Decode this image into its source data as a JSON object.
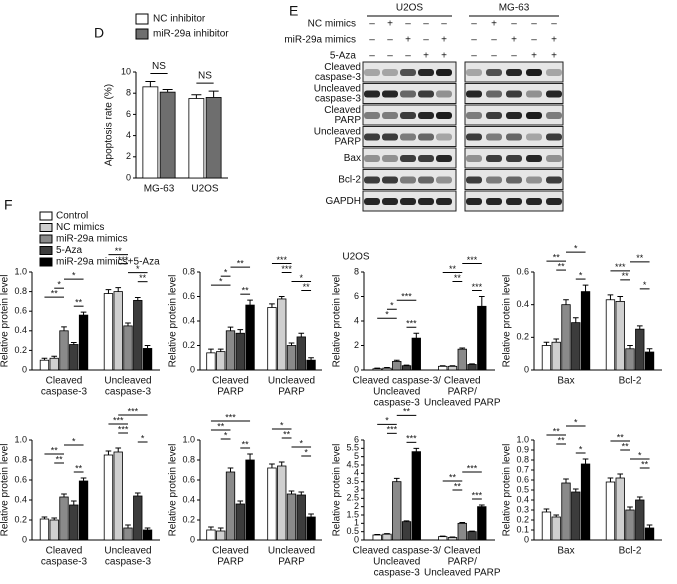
{
  "panel_d": {
    "label": "D"
  },
  "blot": {
    "label": "E",
    "cell_lines": [
      "U2OS",
      "MG-63"
    ],
    "conditions": [
      {
        "name": "NC mimics",
        "signs": [
          "–",
          "+",
          "–",
          "–",
          "–"
        ]
      },
      {
        "name": "miR-29a mimics",
        "signs": [
          "–",
          "–",
          "+",
          "–",
          "+"
        ]
      },
      {
        "name": "5-Aza",
        "signs": [
          "–",
          "–",
          "–",
          "+",
          "+"
        ]
      }
    ],
    "proteins": [
      [
        "Cleaved",
        "caspase-3"
      ],
      [
        "Uncleaved",
        "caspase-3"
      ],
      [
        "Cleaved",
        "PARP"
      ],
      [
        "Uncleaved",
        "PARP"
      ],
      [
        "Bax"
      ],
      [
        "Bcl-2"
      ],
      [
        "GAPDH"
      ]
    ]
  },
  "panel_f": {
    "label": "F",
    "title": "U2OS",
    "legend": [
      {
        "name": "Control",
        "color": "#ffffff"
      },
      {
        "name": "NC mimics",
        "color": "#cfcfcf"
      },
      {
        "name": "miR-29a mimics",
        "color": "#8a8a8a"
      },
      {
        "name": "5-Aza",
        "color": "#3c3c3c"
      },
      {
        "name": "miR-29a mimics+5-Aza",
        "color": "#000000"
      }
    ]
  },
  "chart_data": [
    {
      "type": "bar",
      "ylabel": "Apoptosis rate (%)",
      "categories": [
        "MG-63",
        "U2OS"
      ],
      "series": [
        {
          "name": "NC inhibitor",
          "color": "#ffffff",
          "values": [
            8.6,
            7.5
          ],
          "errors": [
            0.5,
            0.35
          ]
        },
        {
          "name": "miR-29a inhibitor",
          "color": "#6e6e6e",
          "values": [
            8.1,
            7.6
          ],
          "errors": [
            0.25,
            0.6
          ]
        }
      ],
      "annotations": [
        "NS",
        "NS"
      ],
      "ylim": [
        0,
        10
      ],
      "yticks": [
        0,
        2,
        4,
        6,
        8,
        10
      ]
    },
    {
      "type": "bar",
      "ylabel": "Relative protein level",
      "categories": [
        [
          "Cleaved",
          "caspase-3"
        ],
        [
          "Uncleaved",
          "caspase-3"
        ]
      ],
      "series": [
        {
          "values": [
            0.1,
            0.78
          ],
          "errors": [
            0.02,
            0.04
          ]
        },
        {
          "values": [
            0.12,
            0.8
          ],
          "errors": [
            0.02,
            0.04
          ]
        },
        {
          "values": [
            0.4,
            0.45
          ],
          "errors": [
            0.04,
            0.03
          ]
        },
        {
          "values": [
            0.26,
            0.71
          ],
          "errors": [
            0.02,
            0.03
          ]
        },
        {
          "values": [
            0.56,
            0.22
          ],
          "errors": [
            0.03,
            0.03
          ]
        }
      ],
      "ylim": [
        0,
        1
      ],
      "yticks": [
        0,
        0.2,
        0.4,
        0.6,
        0.8,
        {
          "value": 1,
          "label": "1.0"
        }
      ],
      "brackets": [
        [
          0,
          3,
          4,
          "**"
        ],
        [
          0,
          0,
          2,
          "**"
        ],
        [
          0,
          1,
          2,
          "*"
        ],
        [
          0,
          2,
          4,
          "*"
        ],
        [
          1,
          3,
          4,
          "**"
        ],
        [
          1,
          2,
          4,
          "*"
        ],
        [
          1,
          1,
          2,
          "***"
        ],
        [
          1,
          0,
          2,
          "**"
        ]
      ]
    },
    {
      "type": "bar",
      "ylabel": "Relative protein level",
      "categories": [
        [
          "Cleaved",
          "PARP"
        ],
        [
          "Uncleaved",
          "PARP"
        ]
      ],
      "series": [
        {
          "values": [
            0.14,
            0.51
          ],
          "errors": [
            0.03,
            0.03
          ]
        },
        {
          "values": [
            0.15,
            0.58
          ],
          "errors": [
            0.02,
            0.02
          ]
        },
        {
          "values": [
            0.32,
            0.2
          ],
          "errors": [
            0.03,
            0.02
          ]
        },
        {
          "values": [
            0.3,
            0.27
          ],
          "errors": [
            0.03,
            0.03
          ]
        },
        {
          "values": [
            0.53,
            0.08
          ],
          "errors": [
            0.04,
            0.02
          ]
        }
      ],
      "ylim": [
        0,
        0.8
      ],
      "yticks": [
        0,
        0.2,
        0.4,
        0.6,
        0.8
      ],
      "brackets": [
        [
          0,
          3,
          4,
          "**"
        ],
        [
          0,
          0,
          2,
          "*"
        ],
        [
          0,
          1,
          2,
          "*"
        ],
        [
          0,
          2,
          4,
          "**"
        ],
        [
          1,
          3,
          4,
          "**"
        ],
        [
          1,
          2,
          4,
          "*"
        ],
        [
          1,
          1,
          2,
          "***"
        ],
        [
          1,
          0,
          2,
          "***"
        ]
      ]
    },
    {
      "type": "bar",
      "ylabel": "Relative protein level",
      "categories": [
        [
          "Cleaved caspase-3/",
          "Uncleaved",
          "caspase-3"
        ],
        [
          "Cleaved",
          "PARP/",
          "Uncleaved PARP"
        ]
      ],
      "series": [
        {
          "values": [
            0.1,
            0.3
          ],
          "errors": [
            0.05,
            0.05
          ]
        },
        {
          "values": [
            0.15,
            0.3
          ],
          "errors": [
            0.05,
            0.05
          ]
        },
        {
          "values": [
            0.7,
            1.7
          ],
          "errors": [
            0.1,
            0.1
          ]
        },
        {
          "values": [
            0.35,
            0.45
          ],
          "errors": [
            0.05,
            0.05
          ]
        },
        {
          "values": [
            2.6,
            5.2
          ],
          "errors": [
            0.4,
            0.8
          ]
        }
      ],
      "ylim": [
        0,
        8
      ],
      "yticks": [
        0,
        2,
        4,
        6,
        8
      ],
      "brackets": [
        [
          0,
          3,
          4,
          "***"
        ],
        [
          0,
          0,
          2,
          "*"
        ],
        [
          0,
          1,
          2,
          "*"
        ],
        [
          0,
          2,
          4,
          "***"
        ],
        [
          1,
          3,
          4,
          "***"
        ],
        [
          1,
          1,
          2,
          "**"
        ],
        [
          1,
          0,
          2,
          "**"
        ],
        [
          1,
          2,
          4,
          "***"
        ]
      ]
    },
    {
      "type": "bar",
      "ylabel": "Relative protein level",
      "categories": [
        "Bax",
        "Bcl-2"
      ],
      "series": [
        {
          "values": [
            0.15,
            0.43
          ],
          "errors": [
            0.02,
            0.03
          ]
        },
        {
          "values": [
            0.17,
            0.42
          ],
          "errors": [
            0.02,
            0.03
          ]
        },
        {
          "values": [
            0.4,
            0.13
          ],
          "errors": [
            0.03,
            0.02
          ]
        },
        {
          "values": [
            0.29,
            0.25
          ],
          "errors": [
            0.03,
            0.02
          ]
        },
        {
          "values": [
            0.48,
            0.11
          ],
          "errors": [
            0.04,
            0.02
          ]
        }
      ],
      "ylim": [
        0,
        0.6
      ],
      "yticks": [
        0,
        0.2,
        0.4,
        0.6
      ],
      "brackets": [
        [
          0,
          3,
          4,
          "*"
        ],
        [
          0,
          1,
          2,
          "**"
        ],
        [
          0,
          0,
          2,
          "**"
        ],
        [
          0,
          2,
          4,
          "*"
        ],
        [
          1,
          3,
          4,
          "*"
        ],
        [
          1,
          1,
          2,
          "**"
        ],
        [
          1,
          0,
          2,
          "***"
        ],
        [
          1,
          2,
          4,
          "**"
        ]
      ]
    },
    {
      "type": "bar",
      "ylabel": "Relative protein level",
      "categories": [
        [
          "Cleaved",
          "caspase-3"
        ],
        [
          "Uncleaved",
          "caspase-3"
        ]
      ],
      "series": [
        {
          "values": [
            0.21,
            0.85
          ],
          "errors": [
            0.02,
            0.04
          ]
        },
        {
          "values": [
            0.2,
            0.88
          ],
          "errors": [
            0.02,
            0.04
          ]
        },
        {
          "values": [
            0.43,
            0.12
          ],
          "errors": [
            0.03,
            0.03
          ]
        },
        {
          "values": [
            0.35,
            0.44
          ],
          "errors": [
            0.04,
            0.03
          ]
        },
        {
          "values": [
            0.59,
            0.1
          ],
          "errors": [
            0.03,
            0.02
          ]
        }
      ],
      "ylim": [
        0,
        1
      ],
      "yticks": [
        0,
        0.2,
        0.4,
        0.6,
        0.8,
        {
          "value": 1,
          "label": "1.0"
        }
      ],
      "brackets": [
        [
          0,
          3,
          4,
          "**"
        ],
        [
          0,
          1,
          2,
          "**"
        ],
        [
          0,
          0,
          2,
          "**"
        ],
        [
          0,
          2,
          4,
          "*"
        ],
        [
          1,
          3,
          4,
          "*"
        ],
        [
          1,
          1,
          2,
          "***"
        ],
        [
          1,
          0,
          2,
          "***"
        ],
        [
          1,
          1,
          4,
          "***"
        ]
      ]
    },
    {
      "type": "bar",
      "ylabel": "Relative protein level",
      "categories": [
        [
          "Cleaved",
          "PARP"
        ],
        [
          "Uncleaved",
          "PARP"
        ]
      ],
      "series": [
        {
          "values": [
            0.1,
            0.72
          ],
          "errors": [
            0.03,
            0.04
          ]
        },
        {
          "values": [
            0.09,
            0.74
          ],
          "errors": [
            0.03,
            0.04
          ]
        },
        {
          "values": [
            0.68,
            0.46
          ],
          "errors": [
            0.04,
            0.03
          ]
        },
        {
          "values": [
            0.36,
            0.45
          ],
          "errors": [
            0.03,
            0.03
          ]
        },
        {
          "values": [
            0.8,
            0.23
          ],
          "errors": [
            0.06,
            0.03
          ]
        }
      ],
      "ylim": [
        0,
        1
      ],
      "yticks": [
        0,
        0.2,
        0.4,
        0.6,
        0.8,
        {
          "value": 1,
          "label": "1.0"
        }
      ],
      "brackets": [
        [
          0,
          3,
          4,
          "**"
        ],
        [
          0,
          1,
          2,
          "*"
        ],
        [
          0,
          0,
          2,
          "**"
        ],
        [
          0,
          0,
          4,
          "***"
        ],
        [
          1,
          3,
          4,
          "*"
        ],
        [
          1,
          2,
          4,
          "*"
        ],
        [
          1,
          1,
          2,
          "**"
        ],
        [
          1,
          0,
          2,
          "*"
        ]
      ]
    },
    {
      "type": "bar",
      "ylabel": "Relative protein level",
      "categories": [
        [
          "Cleaved caspase-3/",
          "Uncleaved",
          "caspase-3"
        ],
        [
          "Cleaved",
          "PARP/",
          "Uncleaved PARP"
        ]
      ],
      "series": [
        {
          "values": [
            0.3,
            0.2
          ],
          "errors": [
            0.03,
            0.03
          ]
        },
        {
          "values": [
            0.35,
            0.15
          ],
          "errors": [
            0.03,
            0.03
          ]
        },
        {
          "values": [
            3.5,
            1.0
          ],
          "errors": [
            0.2,
            0.05
          ]
        },
        {
          "values": [
            1.1,
            0.5
          ],
          "errors": [
            0.05,
            0.03
          ]
        },
        {
          "values": [
            5.3,
            2.0
          ],
          "errors": [
            0.2,
            0.1
          ]
        }
      ],
      "ylim": [
        0,
        6
      ],
      "yticks": [
        0,
        0.5,
        1,
        1.5,
        2,
        2.5,
        3,
        3.5,
        4,
        4.5,
        5,
        5.5,
        6
      ],
      "brackets": [
        [
          0,
          3,
          4,
          "***"
        ],
        [
          0,
          1,
          2,
          "***"
        ],
        [
          0,
          0,
          2,
          "*"
        ],
        [
          0,
          2,
          4,
          "**"
        ],
        [
          1,
          3,
          4,
          "***"
        ],
        [
          1,
          1,
          2,
          "**"
        ],
        [
          1,
          0,
          2,
          "**"
        ],
        [
          1,
          2,
          4,
          "***"
        ]
      ]
    },
    {
      "type": "bar",
      "ylabel": "Relative protein level",
      "categories": [
        "Bax",
        "Bcl-2"
      ],
      "series": [
        {
          "values": [
            0.28,
            0.58
          ],
          "errors": [
            0.03,
            0.04
          ]
        },
        {
          "values": [
            0.23,
            0.62
          ],
          "errors": [
            0.02,
            0.04
          ]
        },
        {
          "values": [
            0.57,
            0.3
          ],
          "errors": [
            0.04,
            0.03
          ]
        },
        {
          "values": [
            0.48,
            0.4
          ],
          "errors": [
            0.03,
            0.03
          ]
        },
        {
          "values": [
            0.76,
            0.12
          ],
          "errors": [
            0.05,
            0.03
          ]
        }
      ],
      "ylim": [
        0,
        1
      ],
      "yticks": [
        0,
        0.1,
        0.2,
        0.3,
        0.4,
        0.5,
        0.6,
        0.7,
        0.8,
        0.9,
        {
          "value": 1,
          "label": "1.0"
        }
      ],
      "brackets": [
        [
          0,
          3,
          4,
          "*"
        ],
        [
          0,
          1,
          2,
          "**"
        ],
        [
          0,
          0,
          2,
          "**"
        ],
        [
          0,
          2,
          4,
          "*"
        ],
        [
          1,
          3,
          4,
          "**"
        ],
        [
          1,
          2,
          4,
          "*"
        ],
        [
          1,
          1,
          2,
          "**"
        ],
        [
          1,
          0,
          2,
          "**"
        ]
      ]
    }
  ]
}
